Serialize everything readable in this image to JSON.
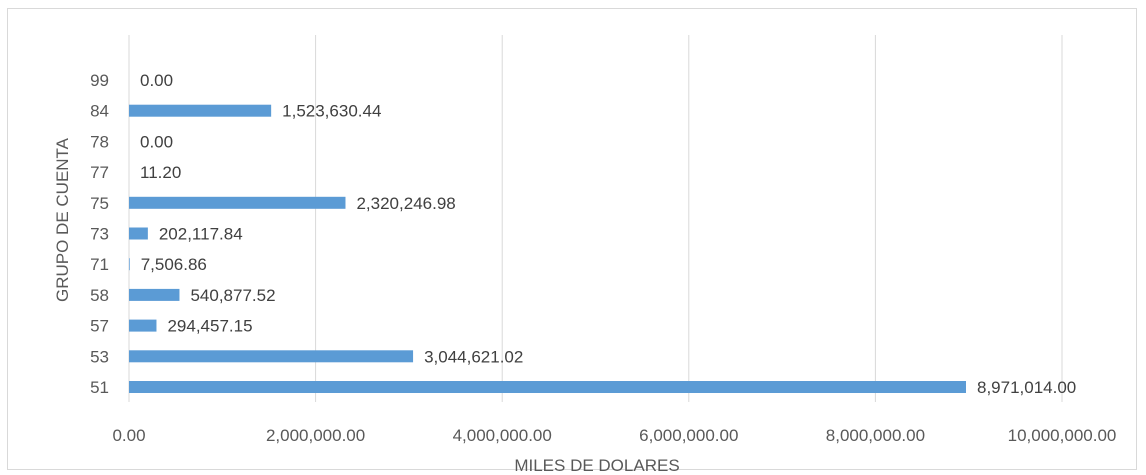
{
  "chart_data": {
    "type": "bar",
    "orientation": "horizontal",
    "title": "",
    "xlabel": "MILES DE DOLARES",
    "ylabel": "GRUPO DE CUENTA",
    "categories": [
      "51",
      "53",
      "57",
      "58",
      "71",
      "73",
      "75",
      "77",
      "78",
      "84",
      "99"
    ],
    "values": [
      8971014.0,
      3044621.02,
      294457.15,
      540877.52,
      7506.86,
      202117.84,
      2320246.98,
      11.2,
      0.0,
      1523630.44,
      0.0
    ],
    "data_labels": [
      "8,971,014.00",
      "3,044,621.02",
      "294,457.15",
      "540,877.52",
      "7,506.86",
      "202,117.84",
      "2,320,246.98",
      "11.20",
      "0.00",
      "1,523,630.44",
      "0.00"
    ],
    "xlim": [
      0,
      10000000
    ],
    "xticks": [
      0,
      2000000,
      4000000,
      6000000,
      8000000,
      10000000
    ],
    "xtick_labels": [
      "0.00",
      "2,000,000.00",
      "4,000,000.00",
      "6,000,000.00",
      "8,000,000.00",
      "10,000,000.00"
    ],
    "grid": "vertical",
    "legend": "none",
    "bar_color": "#5b9bd5",
    "grid_color": "#d9d9d9"
  }
}
